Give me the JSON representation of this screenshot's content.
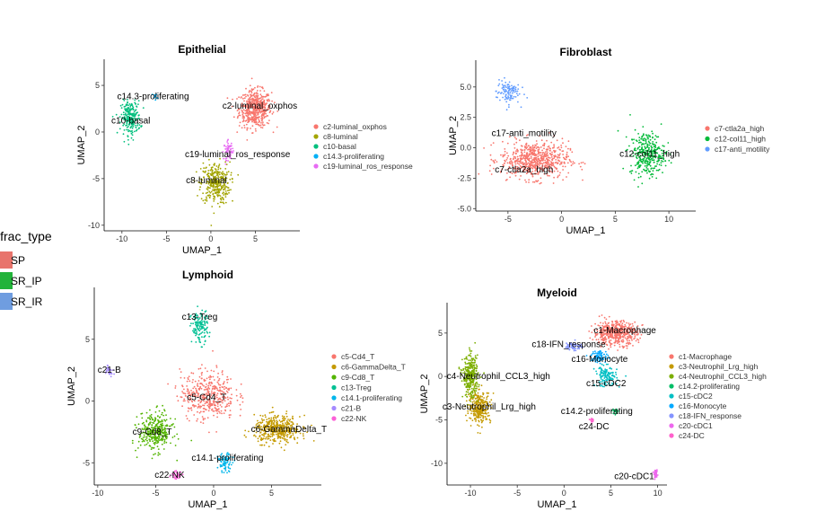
{
  "global_legend": {
    "title": "lfrac_type",
    "items": [
      {
        "label": "SP",
        "color": "#e8746c"
      },
      {
        "label": "SR_IP",
        "color": "#22b33a"
      },
      {
        "label": "SR_IR",
        "color": "#6f9de0"
      }
    ]
  },
  "chart_data": [
    {
      "type": "scatter",
      "title": "Epithelial",
      "xlabel": "UMAP_1",
      "ylabel": "UMAP_2",
      "xlim": [
        -12,
        10
      ],
      "ylim": [
        -10.6,
        7.8
      ],
      "xticks": [
        -10,
        -5,
        0,
        5
      ],
      "yticks": [
        5,
        0,
        -5,
        -10
      ],
      "clusters": [
        {
          "name": "c2-luminal_oxphos",
          "color": "#f8766d",
          "center": [
            5.0,
            2.5
          ],
          "spread": [
            2.0,
            2.2
          ],
          "n": 520,
          "label": "c2-luminal_oxphos",
          "label_pos": [
            5.5,
            2.8
          ]
        },
        {
          "name": "c8-luminal",
          "color": "#a3a500",
          "center": [
            0.5,
            -5.5
          ],
          "spread": [
            1.8,
            2.5
          ],
          "n": 330,
          "label": "c8-luminal",
          "label_pos": [
            -0.5,
            -5.2
          ]
        },
        {
          "name": "c10-basal",
          "color": "#00bf7d",
          "center": [
            -9.0,
            1.5
          ],
          "spread": [
            1.2,
            2.0
          ],
          "n": 230,
          "label": "c10-basal",
          "label_pos": [
            -9.0,
            1.2
          ]
        },
        {
          "name": "c14.3-proliferating",
          "color": "#00b0f6",
          "center": [
            -6.3,
            3.8
          ],
          "spread": [
            0.3,
            0.4
          ],
          "n": 12,
          "label": "c14.3-proliferating",
          "label_pos": [
            -6.5,
            3.8
          ]
        },
        {
          "name": "c19-luminal_ros_response",
          "color": "#e76bf3",
          "center": [
            2.0,
            -2.0
          ],
          "spread": [
            0.6,
            1.1
          ],
          "n": 60,
          "label": "c19-luminal_ros_response",
          "label_pos": [
            3.0,
            -2.4
          ]
        }
      ]
    },
    {
      "type": "scatter",
      "title": "Fibroblast",
      "xlabel": "UMAP_1",
      "ylabel": "UMAP_2",
      "xlim": [
        -8,
        12.5
      ],
      "ylim": [
        -5.2,
        7.2
      ],
      "xticks": [
        -5,
        0,
        5,
        10
      ],
      "yticks": [
        5.0,
        2.5,
        0.0,
        -2.5,
        -5.0
      ],
      "tick_labels_y": [
        "5.0",
        "2.5",
        "0.0",
        "-2.5",
        "-5.0"
      ],
      "clusters": [
        {
          "name": "c7-ctla2a_high",
          "color": "#f8766d",
          "center": [
            -2.5,
            -1.0
          ],
          "spread": [
            3.5,
            1.7
          ],
          "n": 640,
          "label": "c7-ctla2a_high",
          "label_pos": [
            -3.5,
            -1.8
          ]
        },
        {
          "name": "c12-col11_high",
          "color": "#00ba38",
          "center": [
            8.0,
            -0.5
          ],
          "spread": [
            1.8,
            2.0
          ],
          "n": 330,
          "label": "c12-col11_high",
          "label_pos": [
            8.2,
            -0.5
          ]
        },
        {
          "name": "c17-anti_motility",
          "color": "#619cff",
          "center": [
            -5.0,
            4.6
          ],
          "spread": [
            1.2,
            1.1
          ],
          "n": 110,
          "label": "c17-anti_motility",
          "label_pos": [
            -3.5,
            1.2
          ]
        }
      ]
    },
    {
      "type": "scatter",
      "title": "Lymphoid",
      "xlabel": "UMAP_1",
      "ylabel": "UMAP_2",
      "xlim": [
        -10.3,
        9.3
      ],
      "ylim": [
        -6.8,
        9.2
      ],
      "xticks": [
        -10,
        -5,
        0,
        5
      ],
      "yticks": [
        5,
        0,
        -5
      ],
      "clusters": [
        {
          "name": "c5-Cd4_T",
          "color": "#f8766d",
          "center": [
            -0.5,
            0.5
          ],
          "spread": [
            2.6,
            2.2
          ],
          "n": 420,
          "label": "c5-Cd4_T",
          "label_pos": [
            -0.6,
            0.3
          ]
        },
        {
          "name": "c6-GammaDelta_T",
          "color": "#c49a00",
          "center": [
            5.5,
            -2.3
          ],
          "spread": [
            2.2,
            1.2
          ],
          "n": 430,
          "label": "c6-GammaDelta_T",
          "label_pos": [
            6.5,
            -2.3
          ]
        },
        {
          "name": "c9-Cd8_T",
          "color": "#53b400",
          "center": [
            -5.0,
            -2.5
          ],
          "spread": [
            1.6,
            1.7
          ],
          "n": 340,
          "label": "c9-Cd8_T",
          "label_pos": [
            -5.3,
            -2.5
          ]
        },
        {
          "name": "c13-Treg",
          "color": "#00c094",
          "center": [
            -1.2,
            6.0
          ],
          "spread": [
            0.8,
            1.5
          ],
          "n": 140,
          "label": "c13-Treg",
          "label_pos": [
            -1.2,
            6.8
          ]
        },
        {
          "name": "c14.1-proliferating",
          "color": "#00b6eb",
          "center": [
            1.0,
            -5.0
          ],
          "spread": [
            0.7,
            0.8
          ],
          "n": 80,
          "label": "c14.1-proliferating",
          "label_pos": [
            1.2,
            -4.6
          ]
        },
        {
          "name": "c21-B",
          "color": "#a58aff",
          "center": [
            -9.0,
            2.5
          ],
          "spread": [
            0.4,
            0.5
          ],
          "n": 25,
          "label": "c21-B",
          "label_pos": [
            -9.0,
            2.5
          ]
        },
        {
          "name": "c22-NK",
          "color": "#fb61d7",
          "center": [
            -3.2,
            -6.0
          ],
          "spread": [
            0.5,
            0.4
          ],
          "n": 35,
          "label": "c22-NK",
          "label_pos": [
            -3.8,
            -6.0
          ]
        }
      ]
    },
    {
      "type": "scatter",
      "title": "Myeloid",
      "xlabel": "UMAP_1",
      "ylabel": "UMAP_2",
      "xlim": [
        -12.5,
        11
      ],
      "ylim": [
        -12.5,
        8.5
      ],
      "xticks": [
        -10,
        -5,
        0,
        5,
        10
      ],
      "yticks": [
        5,
        0,
        -5,
        -10
      ],
      "clusters": [
        {
          "name": "c1-Macrophage",
          "color": "#f8766d",
          "center": [
            5.5,
            5.0
          ],
          "spread": [
            2.6,
            1.5
          ],
          "n": 520,
          "label": "c1-Macrophage",
          "label_pos": [
            6.5,
            5.3
          ]
        },
        {
          "name": "c3-Neutrophil_Lrg_high",
          "color": "#c49a00",
          "center": [
            -9.0,
            -3.5
          ],
          "spread": [
            1.3,
            2.0
          ],
          "n": 300,
          "label": "c3-Neutrophil_Lrg_high",
          "label_pos": [
            -8.0,
            -3.5
          ]
        },
        {
          "name": "c4-Neutrophil_CCL3_high",
          "color": "#7cae00",
          "center": [
            -10.0,
            0.0
          ],
          "spread": [
            0.9,
            2.6
          ],
          "n": 320,
          "label": "c4-Neutrophil_CCL3_high",
          "label_pos": [
            -7.0,
            0.0
          ]
        },
        {
          "name": "c14.2-proliferating",
          "color": "#00be67",
          "center": [
            5.5,
            -4.0
          ],
          "spread": [
            0.4,
            0.4
          ],
          "n": 25,
          "label": "c14.2-proliferating",
          "label_pos": [
            3.5,
            -4.0
          ]
        },
        {
          "name": "c15-cDC2",
          "color": "#00bfc4",
          "center": [
            4.5,
            0.0
          ],
          "spread": [
            1.3,
            1.3
          ],
          "n": 130,
          "label": "c15-cDC2",
          "label_pos": [
            4.5,
            -0.8
          ]
        },
        {
          "name": "c16-Monocyte",
          "color": "#00a9ff",
          "center": [
            3.8,
            2.3
          ],
          "spread": [
            1.0,
            0.8
          ],
          "n": 80,
          "label": "c16-Monocyte",
          "label_pos": [
            3.8,
            2.0
          ]
        },
        {
          "name": "c18-IFN_response",
          "color": "#8494ff",
          "center": [
            1.0,
            3.5
          ],
          "spread": [
            1.0,
            0.6
          ],
          "n": 60,
          "label": "c18-IFN_response",
          "label_pos": [
            0.5,
            3.7
          ]
        },
        {
          "name": "c20-cDC1",
          "color": "#ed68ed",
          "center": [
            9.8,
            -11.3
          ],
          "spread": [
            0.2,
            0.5
          ],
          "n": 40,
          "label": "c20-cDC1",
          "label_pos": [
            7.5,
            -11.5
          ]
        },
        {
          "name": "c24-DC",
          "color": "#ff61cc",
          "center": [
            3.0,
            -5.0
          ],
          "spread": [
            0.3,
            0.3
          ],
          "n": 15,
          "label": "c24-DC",
          "label_pos": [
            3.2,
            -5.8
          ]
        }
      ]
    }
  ]
}
